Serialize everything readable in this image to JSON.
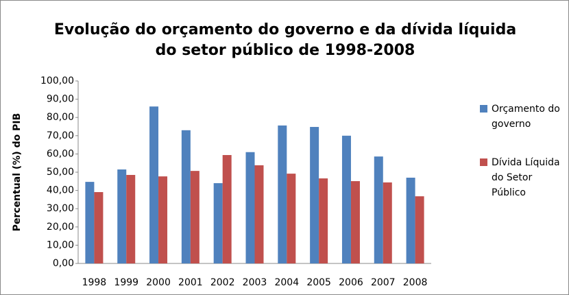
{
  "chart_data": {
    "type": "bar",
    "title": "Evolução do orçamento do governo e da dívida líquida do setor público de 1998-2008",
    "y_label": "Percentual (%) do PIB",
    "categories": [
      "1998",
      "1999",
      "2000",
      "2001",
      "2002",
      "2003",
      "2004",
      "2005",
      "2006",
      "2007",
      "2008"
    ],
    "series": [
      {
        "name": "Orçamento do governo",
        "color": "#4f81bd",
        "values": [
          44.7,
          51.5,
          86.0,
          73.0,
          44.0,
          61.0,
          75.6,
          74.8,
          70.0,
          58.6,
          47.0
        ]
      },
      {
        "name": "Dívida Líquida do Setor Público",
        "color": "#c0504d",
        "values": [
          39.1,
          48.5,
          47.7,
          50.7,
          59.4,
          53.8,
          49.2,
          46.6,
          45.1,
          44.4,
          36.8
        ]
      }
    ],
    "ylim": [
      0,
      100
    ],
    "yticks": [
      {
        "value": 0,
        "label": "0,00"
      },
      {
        "value": 10,
        "label": "10,00"
      },
      {
        "value": 20,
        "label": "20,00"
      },
      {
        "value": 30,
        "label": "30,00"
      },
      {
        "value": 40,
        "label": "40,00"
      },
      {
        "value": 50,
        "label": "50,00"
      },
      {
        "value": 60,
        "label": "60,00"
      },
      {
        "value": 70,
        "label": "70,00"
      },
      {
        "value": 80,
        "label": "80,00"
      },
      {
        "value": 90,
        "label": "90,00"
      },
      {
        "value": 100,
        "label": "100,00"
      }
    ],
    "legend": "right",
    "grid": false
  }
}
